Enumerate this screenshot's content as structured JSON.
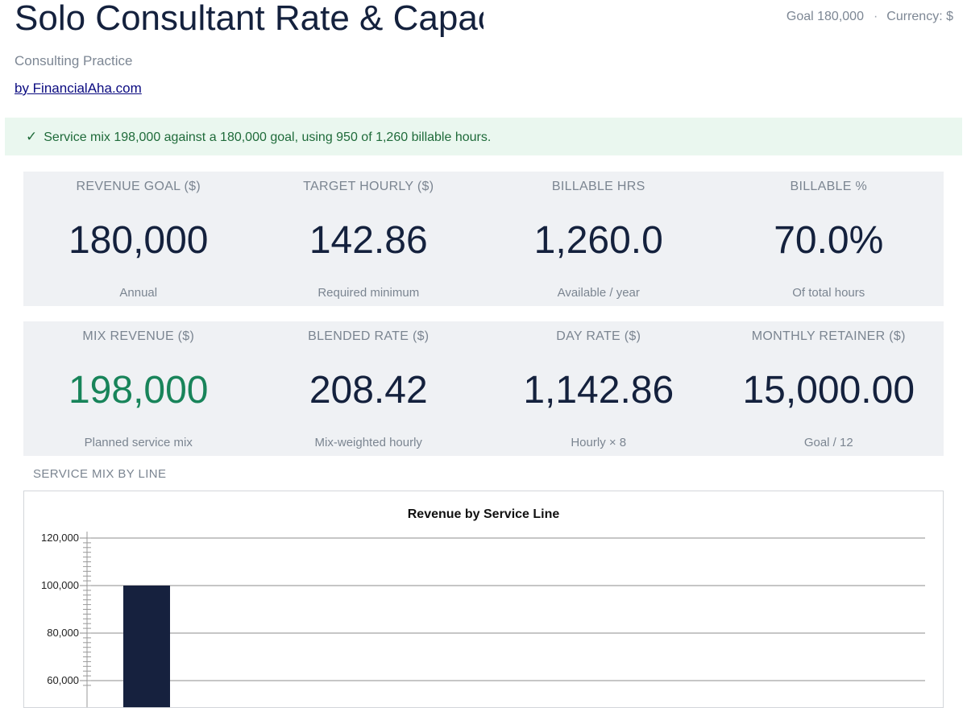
{
  "header": {
    "title": "Solo Consultant Rate & Capacity",
    "goal_text": "Goal 180,000",
    "separator": "·",
    "currency_text": "Currency: $",
    "subtitle": "Consulting Practice",
    "byline": "by FinancialAha.com"
  },
  "banner": {
    "check": "✓",
    "message": "Service mix 198,000 against a 180,000 goal, using 950 of 1,260 billable hours."
  },
  "kpis_row1": [
    {
      "label": "REVENUE GOAL ($)",
      "value": "180,000",
      "sub": "Annual"
    },
    {
      "label": "TARGET HOURLY ($)",
      "value": "142.86",
      "sub": "Required minimum"
    },
    {
      "label": "BILLABLE HRS",
      "value": "1,260.0",
      "sub": "Available / year"
    },
    {
      "label": "BILLABLE %",
      "value": "70.0%",
      "sub": "Of total hours"
    }
  ],
  "kpis_row2": [
    {
      "label": "MIX REVENUE ($)",
      "value": "198,000",
      "sub": "Planned service mix"
    },
    {
      "label": "BLENDED RATE ($)",
      "value": "208.42",
      "sub": "Mix-weighted hourly"
    },
    {
      "label": "DAY RATE ($)",
      "value": "1,142.86",
      "sub": "Hourly × 8"
    },
    {
      "label": "MONTHLY RETAINER ($)",
      "value": "15,000.00",
      "sub": "Goal / 12"
    }
  ],
  "section": {
    "chart_label": "SERVICE MIX BY LINE"
  },
  "colors": {
    "bar": "#16213e",
    "positive": "#18845a",
    "banner_bg": "#eaf7ef"
  },
  "chart_data": {
    "type": "bar",
    "title": "Revenue by Service Line",
    "categories": [
      ""
    ],
    "values": [
      100000
    ],
    "y_ticks": [
      "60,000",
      "80,000",
      "100,000",
      "120,000"
    ],
    "ylim": [
      60000,
      120000
    ],
    "grid": true
  }
}
